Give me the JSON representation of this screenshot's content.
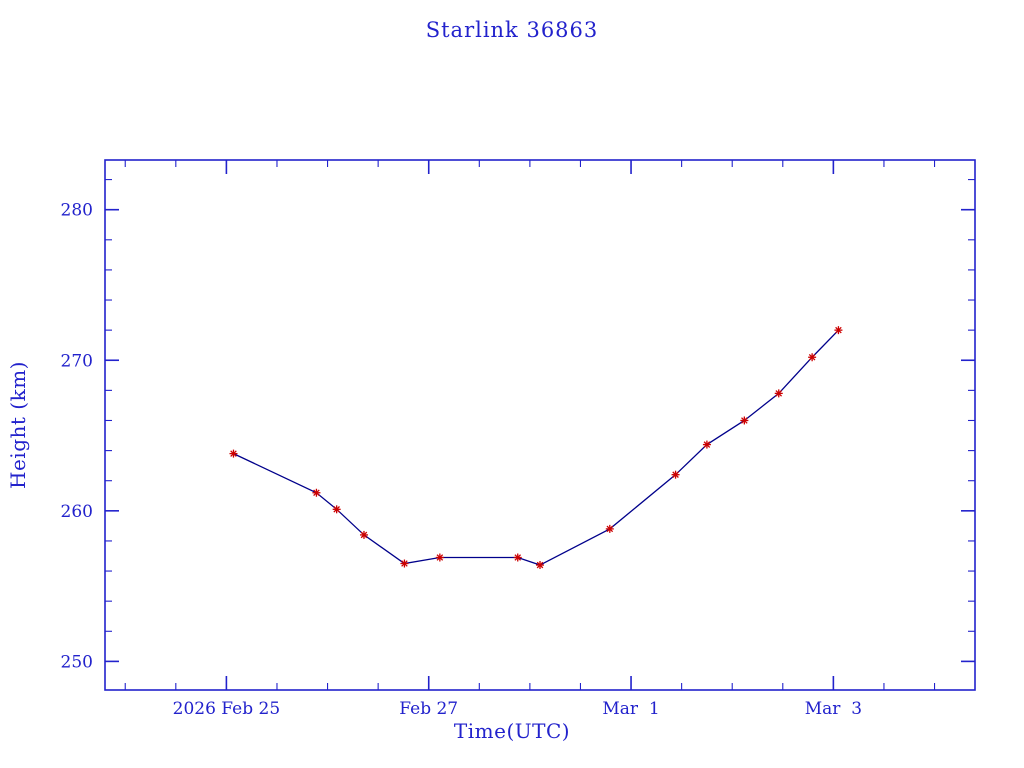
{
  "chart_data": {
    "type": "line",
    "title": "Starlink 36863",
    "xlabel": "Time(UTC)",
    "ylabel": "Height (km)",
    "x_unit": "days since 2026 Feb 25 00:00 UTC",
    "x": [
      0.07,
      0.89,
      1.09,
      1.36,
      1.76,
      2.11,
      2.88,
      3.1,
      3.79,
      4.44,
      4.75,
      5.12,
      5.46,
      5.79,
      6.05
    ],
    "y": [
      263.8,
      261.2,
      260.1,
      258.4,
      256.5,
      256.9,
      256.9,
      256.4,
      258.8,
      262.4,
      264.4,
      266.0,
      267.8,
      270.2,
      272.0
    ],
    "xlim": [
      -1.2,
      7.4
    ],
    "ylim": [
      248.1,
      283.3
    ],
    "xticks": [
      {
        "value": 0,
        "label": "2026 Feb 25"
      },
      {
        "value": 2,
        "label": "Feb 27"
      },
      {
        "value": 4,
        "label": "Mar  1"
      },
      {
        "value": 6,
        "label": "Mar  3"
      }
    ],
    "yticks": [
      {
        "value": 250,
        "label": "250"
      },
      {
        "value": 260,
        "label": "260"
      },
      {
        "value": 270,
        "label": "270"
      },
      {
        "value": 280,
        "label": "280"
      }
    ],
    "x_minor_step": 0.5,
    "y_minor_step": 2,
    "grid": false,
    "legend": "none",
    "marker": "asterisk",
    "colors": {
      "frame": "#2222cc",
      "text": "#2222cc",
      "line": "#00008b",
      "marker": "#cc0000",
      "background": "#ffffff"
    }
  }
}
